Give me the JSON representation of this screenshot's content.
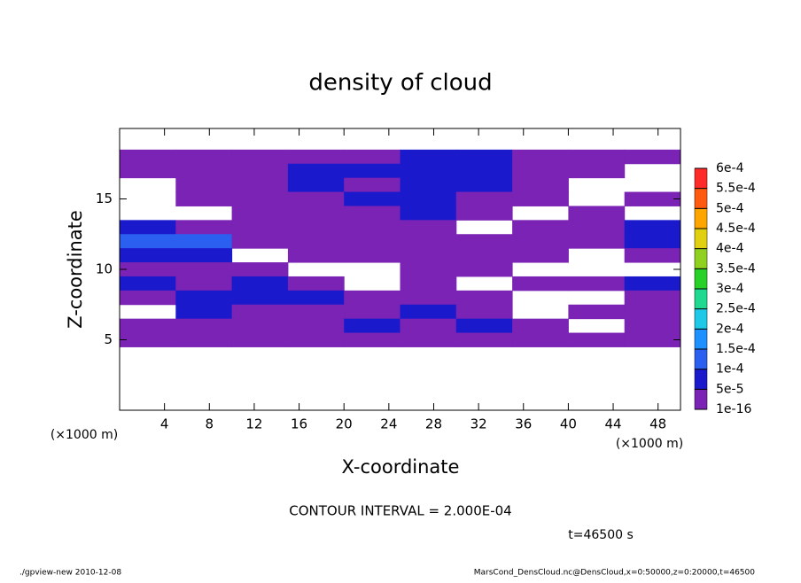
{
  "chart_data": {
    "type": "contour",
    "title": "density of cloud",
    "x_label": "X-coordinate",
    "y_label": "Z-coordinate",
    "x_unit_left": "(×1000 m)",
    "x_unit_right": "(×1000 m)",
    "contour_interval": "CONTOUR INTERVAL = 2.000E-04",
    "time_label": "t=46500 s",
    "footer_left": "./gpview-new  2010-12-08",
    "footer_right": "MarsCond_DensCloud.nc@DensCloud,x=0:50000,z=0:20000,t=46500",
    "xlim": [
      0,
      50
    ],
    "ylim": [
      0,
      20
    ],
    "xticks": [
      4,
      8,
      12,
      16,
      20,
      24,
      28,
      32,
      36,
      40,
      44,
      48
    ],
    "yticks": [
      5,
      10,
      15
    ],
    "x": [
      2.5,
      7.5,
      12.5,
      17.5,
      22.5,
      27.5,
      32.5,
      37.5,
      42.5,
      47.5
    ],
    "y": [
      18,
      17,
      16,
      15,
      14,
      13,
      12,
      11,
      10,
      9,
      8,
      7,
      6,
      5
    ],
    "values": [
      [
        1e-05,
        1e-05,
        1e-05,
        1e-05,
        1e-05,
        6e-05,
        6e-05,
        1e-05,
        1e-05,
        1e-05
      ],
      [
        1e-05,
        1e-05,
        1e-05,
        6e-05,
        6e-05,
        6e-05,
        6e-05,
        1e-05,
        1e-05,
        null
      ],
      [
        null,
        1e-05,
        1e-05,
        6e-05,
        1e-05,
        6e-05,
        6e-05,
        1e-05,
        null,
        null
      ],
      [
        null,
        1e-05,
        1e-05,
        1e-05,
        6e-05,
        6e-05,
        1e-05,
        1e-05,
        null,
        1e-05
      ],
      [
        null,
        null,
        1e-05,
        1e-05,
        1e-05,
        6e-05,
        1e-05,
        null,
        1e-05,
        null
      ],
      [
        6e-05,
        1e-05,
        1e-05,
        1e-05,
        1e-05,
        1e-05,
        null,
        1e-05,
        1e-05,
        6e-05
      ],
      [
        0.00011,
        0.00011,
        1e-05,
        1e-05,
        1e-05,
        1e-05,
        1e-05,
        1e-05,
        1e-05,
        6e-05
      ],
      [
        6e-05,
        6e-05,
        null,
        1e-05,
        1e-05,
        1e-05,
        1e-05,
        1e-05,
        null,
        1e-05
      ],
      [
        1e-05,
        1e-05,
        1e-05,
        null,
        null,
        1e-05,
        1e-05,
        null,
        null,
        null
      ],
      [
        6e-05,
        1e-05,
        6e-05,
        1e-05,
        null,
        1e-05,
        null,
        1e-05,
        1e-05,
        6e-05
      ],
      [
        1e-05,
        6e-05,
        6e-05,
        6e-05,
        1e-05,
        1e-05,
        1e-05,
        null,
        null,
        1e-05
      ],
      [
        null,
        6e-05,
        1e-05,
        1e-05,
        1e-05,
        6e-05,
        1e-05,
        null,
        1e-05,
        1e-05
      ],
      [
        1e-05,
        1e-05,
        1e-05,
        1e-05,
        6e-05,
        1e-05,
        6e-05,
        1e-05,
        null,
        1e-05
      ],
      [
        1e-05,
        1e-05,
        1e-05,
        1e-05,
        1e-05,
        1e-05,
        1e-05,
        1e-05,
        1e-05,
        1e-05
      ]
    ],
    "levels": [
      {
        "value": 1e-16,
        "label": "1e-16"
      },
      {
        "value": 5e-05,
        "label": "5e-5"
      },
      {
        "value": 0.0001,
        "label": "1e-4"
      },
      {
        "value": 0.00015,
        "label": "1.5e-4"
      },
      {
        "value": 0.0002,
        "label": "2e-4"
      },
      {
        "value": 0.00025,
        "label": "2.5e-4"
      },
      {
        "value": 0.0003,
        "label": "3e-4"
      },
      {
        "value": 0.00035,
        "label": "3.5e-4"
      },
      {
        "value": 0.0004,
        "label": "4e-4"
      },
      {
        "value": 0.00045,
        "label": "4.5e-4"
      },
      {
        "value": 0.0005,
        "label": "5e-4"
      },
      {
        "value": 0.00055,
        "label": "5.5e-4"
      },
      {
        "value": 0.0006,
        "label": "6e-4"
      }
    ],
    "colors": [
      "#7a23b4",
      "#1a1acc",
      "#2a5ff0",
      "#1e90ff",
      "#20c8e8",
      "#20d890",
      "#28d028",
      "#90d020",
      "#e0d010",
      "#ffa500",
      "#ff5a10",
      "#ff2a2a",
      "#ff8080"
    ]
  }
}
